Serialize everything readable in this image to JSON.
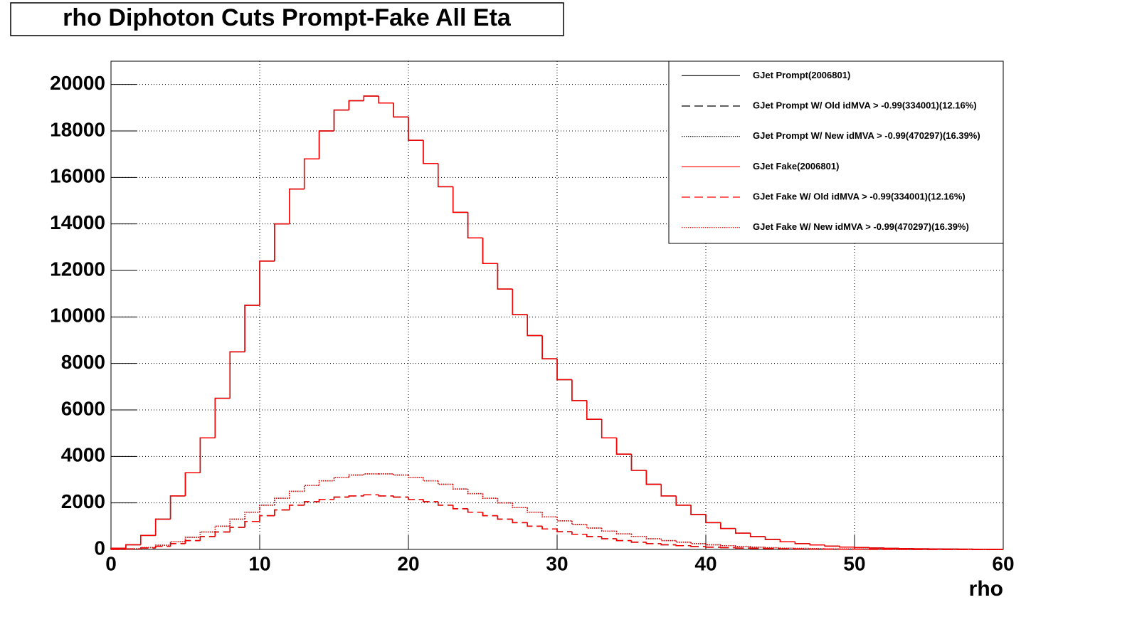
{
  "chart_data": {
    "type": "histogram",
    "title": "rho Diphoton Cuts Prompt-Fake All Eta",
    "x_label": "rho",
    "bins": [
      0,
      1,
      2,
      3,
      4,
      5,
      6,
      7,
      8,
      9,
      10,
      11,
      12,
      13,
      14,
      15,
      16,
      17,
      18,
      19,
      20,
      21,
      22,
      23,
      24,
      25,
      26,
      27,
      28,
      29,
      30,
      31,
      32,
      33,
      34,
      35,
      36,
      37,
      38,
      39,
      40,
      41,
      42,
      43,
      44,
      45,
      46,
      47,
      48,
      49,
      50,
      51,
      52,
      53,
      54,
      55,
      56,
      57,
      58,
      59,
      60
    ],
    "xlim": [
      0,
      60
    ],
    "xticks": [
      0,
      10,
      20,
      30,
      40,
      50,
      60
    ],
    "ylim": [
      0,
      21000
    ],
    "yticks": [
      0,
      2000,
      4000,
      6000,
      8000,
      10000,
      12000,
      14000,
      16000,
      18000,
      20000
    ],
    "grid": true,
    "legend": "top-right",
    "series": [
      {
        "name": "GJet Prompt(2006801)",
        "color": "#000000",
        "line_style": "solid",
        "values": [
          50,
          200,
          600,
          1300,
          2300,
          3300,
          4800,
          6500,
          8500,
          10500,
          12400,
          14000,
          15500,
          16800,
          18000,
          18900,
          19300,
          19500,
          19200,
          18600,
          17600,
          16600,
          15600,
          14500,
          13400,
          12300,
          11200,
          10100,
          9200,
          8200,
          7300,
          6400,
          5600,
          4800,
          4100,
          3400,
          2800,
          2300,
          1900,
          1500,
          1150,
          900,
          700,
          550,
          430,
          330,
          250,
          190,
          140,
          100,
          80,
          60,
          45,
          35,
          25,
          20,
          15,
          10,
          5,
          0
        ]
      },
      {
        "name": "GJet Prompt W/ Old idMVA > -0.99(334001)(12.16%)",
        "color": "#000000",
        "line_style": "dashed",
        "values": [
          5,
          20,
          60,
          130,
          250,
          380,
          550,
          750,
          950,
          1200,
          1450,
          1700,
          1900,
          2050,
          2150,
          2250,
          2300,
          2350,
          2300,
          2250,
          2150,
          2050,
          1900,
          1750,
          1600,
          1450,
          1300,
          1150,
          1000,
          880,
          760,
          650,
          550,
          460,
          380,
          310,
          250,
          200,
          160,
          125,
          95,
          75,
          58,
          45,
          35,
          27,
          20,
          15,
          11,
          8,
          6,
          4,
          3,
          2,
          1,
          1,
          0,
          0,
          0,
          0
        ]
      },
      {
        "name": "GJet Prompt W/ New idMVA > -0.99(470297)(16.39%)",
        "color": "#000000",
        "line_style": "dotted",
        "values": [
          5,
          25,
          80,
          180,
          330,
          520,
          750,
          1000,
          1300,
          1600,
          1900,
          2200,
          2500,
          2750,
          2950,
          3100,
          3200,
          3250,
          3250,
          3200,
          3100,
          2950,
          2800,
          2600,
          2400,
          2200,
          2000,
          1800,
          1600,
          1400,
          1230,
          1070,
          920,
          790,
          670,
          560,
          460,
          380,
          310,
          250,
          200,
          160,
          125,
          95,
          72,
          55,
          42,
          32,
          24,
          18,
          13,
          10,
          7,
          5,
          3,
          2,
          1,
          1,
          0,
          0
        ]
      },
      {
        "name": "GJet Fake(2006801)",
        "color": "#ff0000",
        "line_style": "solid",
        "values": [
          50,
          200,
          600,
          1300,
          2300,
          3300,
          4800,
          6500,
          8500,
          10500,
          12400,
          14000,
          15500,
          16800,
          18000,
          18900,
          19300,
          19500,
          19200,
          18600,
          17600,
          16600,
          15600,
          14500,
          13400,
          12300,
          11200,
          10100,
          9200,
          8200,
          7300,
          6400,
          5600,
          4800,
          4100,
          3400,
          2800,
          2300,
          1900,
          1500,
          1150,
          900,
          700,
          550,
          430,
          330,
          250,
          190,
          140,
          100,
          80,
          60,
          45,
          35,
          25,
          20,
          15,
          10,
          5,
          0
        ]
      },
      {
        "name": "GJet Fake W/ Old idMVA > -0.99(334001)(12.16%)",
        "color": "#ff0000",
        "line_style": "dashed",
        "values": [
          5,
          20,
          60,
          130,
          250,
          380,
          550,
          750,
          950,
          1200,
          1450,
          1700,
          1900,
          2050,
          2150,
          2250,
          2300,
          2350,
          2300,
          2250,
          2150,
          2050,
          1900,
          1750,
          1600,
          1450,
          1300,
          1150,
          1000,
          880,
          760,
          650,
          550,
          460,
          380,
          310,
          250,
          200,
          160,
          125,
          95,
          75,
          58,
          45,
          35,
          27,
          20,
          15,
          11,
          8,
          6,
          4,
          3,
          2,
          1,
          1,
          0,
          0,
          0,
          0
        ]
      },
      {
        "name": "GJet Fake W/ New idMVA > -0.99(470297)(16.39%)",
        "color": "#ff0000",
        "line_style": "dotted",
        "values": [
          5,
          25,
          80,
          180,
          330,
          520,
          750,
          1000,
          1300,
          1600,
          1900,
          2200,
          2500,
          2750,
          2950,
          3100,
          3200,
          3250,
          3250,
          3200,
          3100,
          2950,
          2800,
          2600,
          2400,
          2200,
          2000,
          1800,
          1600,
          1400,
          1230,
          1070,
          920,
          790,
          670,
          560,
          460,
          380,
          310,
          250,
          200,
          160,
          125,
          95,
          72,
          55,
          42,
          32,
          24,
          18,
          13,
          10,
          7,
          5,
          3,
          2,
          1,
          1,
          0,
          0
        ]
      }
    ]
  }
}
